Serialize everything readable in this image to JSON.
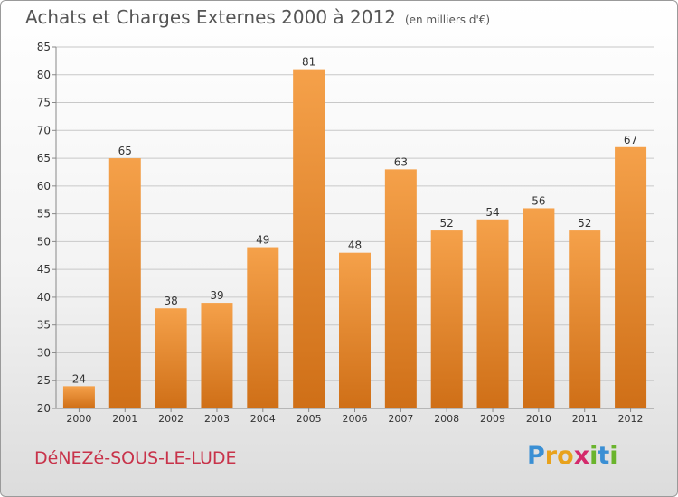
{
  "title": "Achats et Charges Externes 2000 à 2012",
  "subtitle": "(en milliers d'€)",
  "commune": "DéNEZé-SOUS-LE-LUDE",
  "logo": {
    "letters": [
      "P",
      "r",
      "o",
      "x",
      "i",
      "t",
      "i"
    ],
    "colors": [
      "#3a8fd4",
      "#e8a21c",
      "#e8a21c",
      "#d42a6b",
      "#6ab42d",
      "#3a8fd4",
      "#6ab42d"
    ]
  },
  "colors": {
    "bar_top": "#f5a14a",
    "bar_bottom": "#cf6f17",
    "grid": "#c8c8c8",
    "axis_text": "#333333",
    "label_text": "#333333"
  },
  "chart_data": {
    "type": "bar",
    "categories": [
      "2000",
      "2001",
      "2002",
      "2003",
      "2004",
      "2005",
      "2006",
      "2007",
      "2008",
      "2009",
      "2010",
      "2011",
      "2012"
    ],
    "values": [
      24,
      65,
      38,
      39,
      49,
      81,
      48,
      63,
      52,
      54,
      56,
      52,
      67
    ],
    "data_labels": [
      "24",
      "65",
      "38",
      "39",
      "49",
      "81",
      "48",
      "63",
      "52",
      "54",
      "56",
      "52",
      "67"
    ],
    "yticks": [
      "20",
      "25",
      "30",
      "35",
      "40",
      "45",
      "50",
      "55",
      "60",
      "65",
      "70",
      "75",
      "80",
      "85"
    ],
    "ylim": [
      20,
      85
    ],
    "grid": true,
    "title": "Achats et Charges Externes 2000 à 2012",
    "xlabel": "",
    "ylabel": ""
  }
}
